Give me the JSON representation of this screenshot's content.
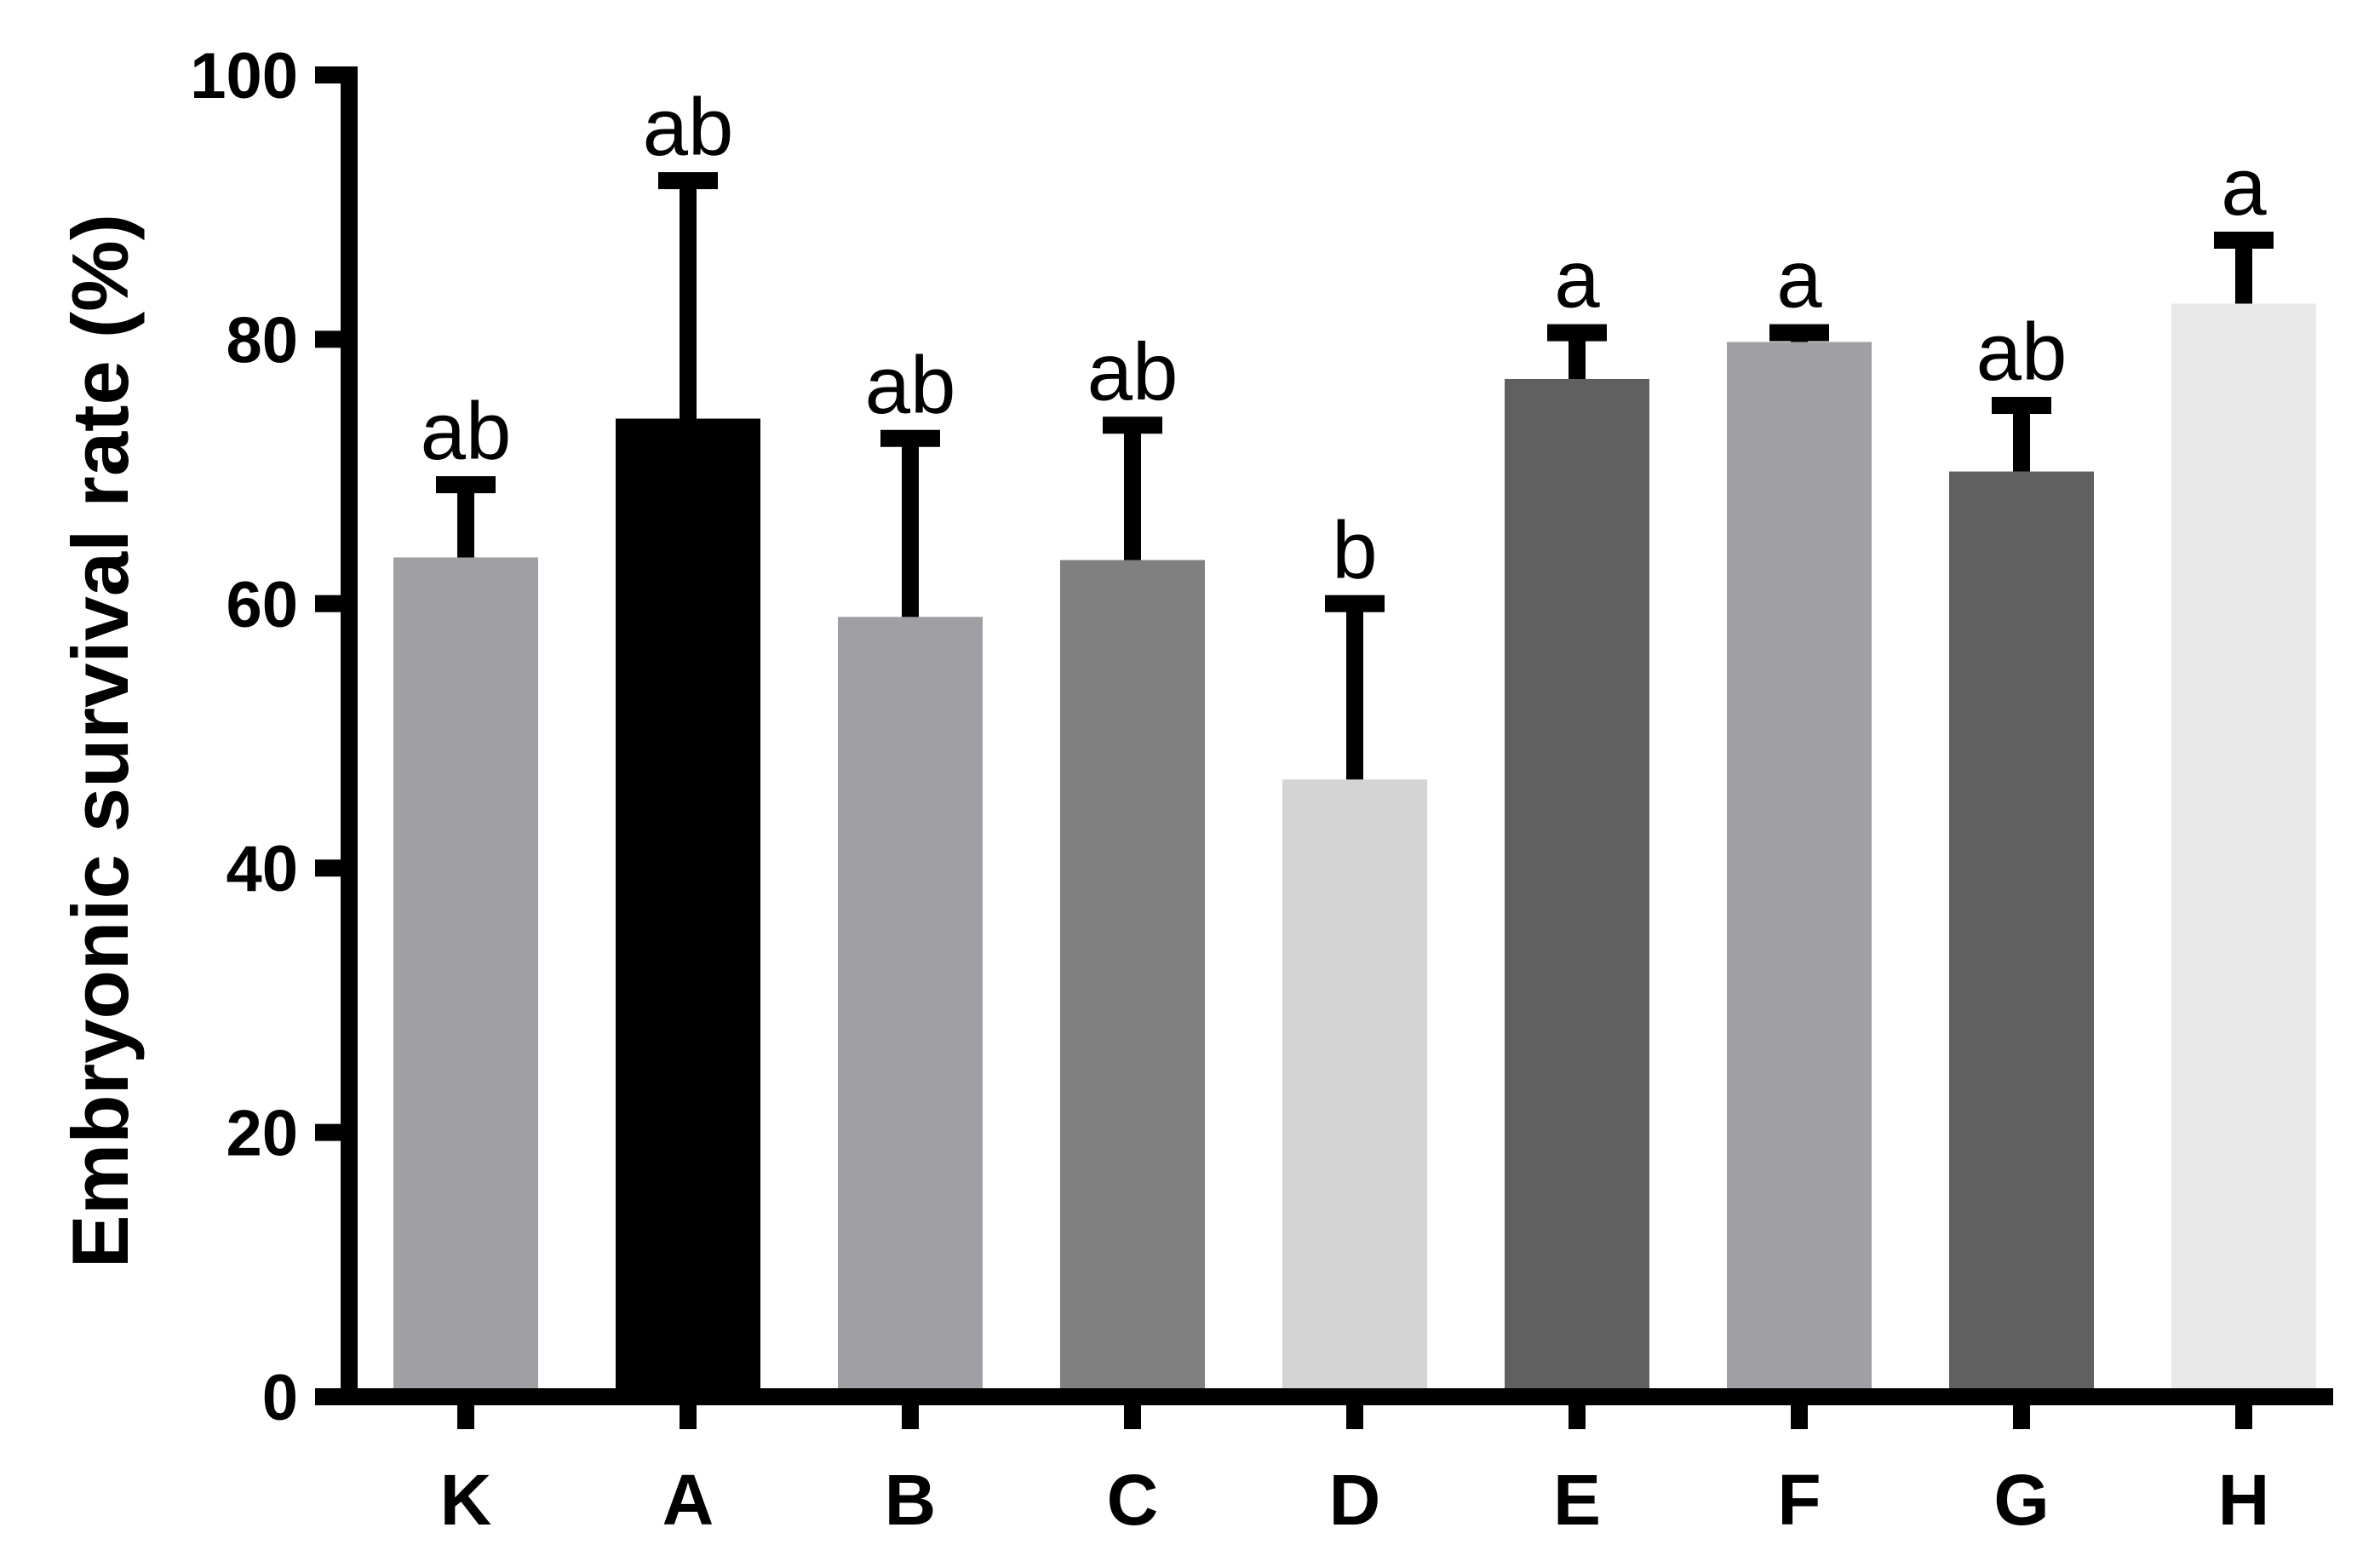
{
  "chart_data": {
    "type": "bar",
    "ylabel": "Embryonic survival rate (%)",
    "xlabel": "",
    "ylim": [
      0,
      100
    ],
    "yticks": [
      0,
      20,
      40,
      60,
      80,
      100
    ],
    "grid": false,
    "categories": [
      "K",
      "A",
      "B",
      "C",
      "D",
      "E",
      "F",
      "G",
      "H"
    ],
    "values": [
      63.5,
      74,
      59,
      63.3,
      46.7,
      77,
      79.8,
      70,
      82.7
    ],
    "error_upper": [
      69,
      92,
      72.5,
      73.5,
      60,
      80.5,
      80.5,
      75,
      87.5
    ],
    "significance": [
      "ab",
      "ab",
      "ab",
      "ab",
      "b",
      "a",
      "a",
      "ab",
      "a"
    ],
    "colors": [
      "#a0a0a4",
      "#000000",
      "#a0a0a4",
      "#808080",
      "#d4d4d4",
      "#606060",
      "#a0a0a4",
      "#606060",
      "#e8e8e8"
    ]
  }
}
